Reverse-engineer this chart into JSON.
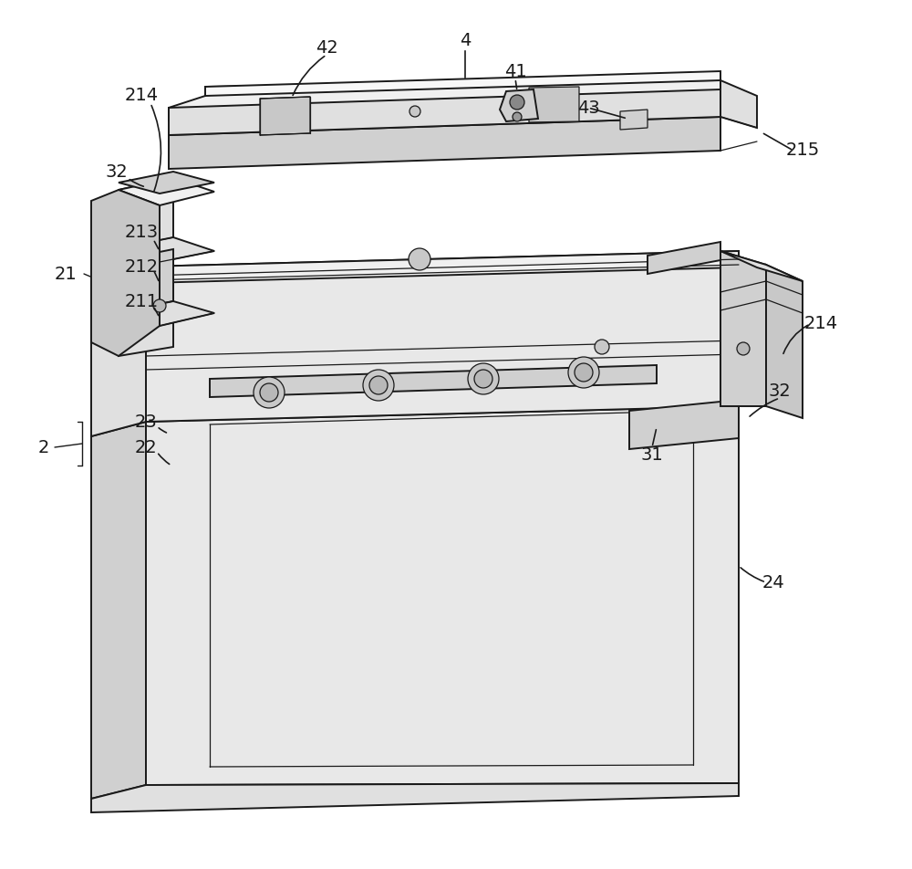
{
  "bg": "#ffffff",
  "lc": "#1a1a1a",
  "lw": 1.4,
  "tlw": 0.9,
  "shade1": "#f0f0f0",
  "shade2": "#e0e0e0",
  "shade3": "#d0d0d0",
  "shade4": "#c8c8c8",
  "shade5": "#b8b8b8",
  "shade6": "#e8e8e8",
  "shade7": "#d8d8d8",
  "shade8": "#f8f8f8"
}
